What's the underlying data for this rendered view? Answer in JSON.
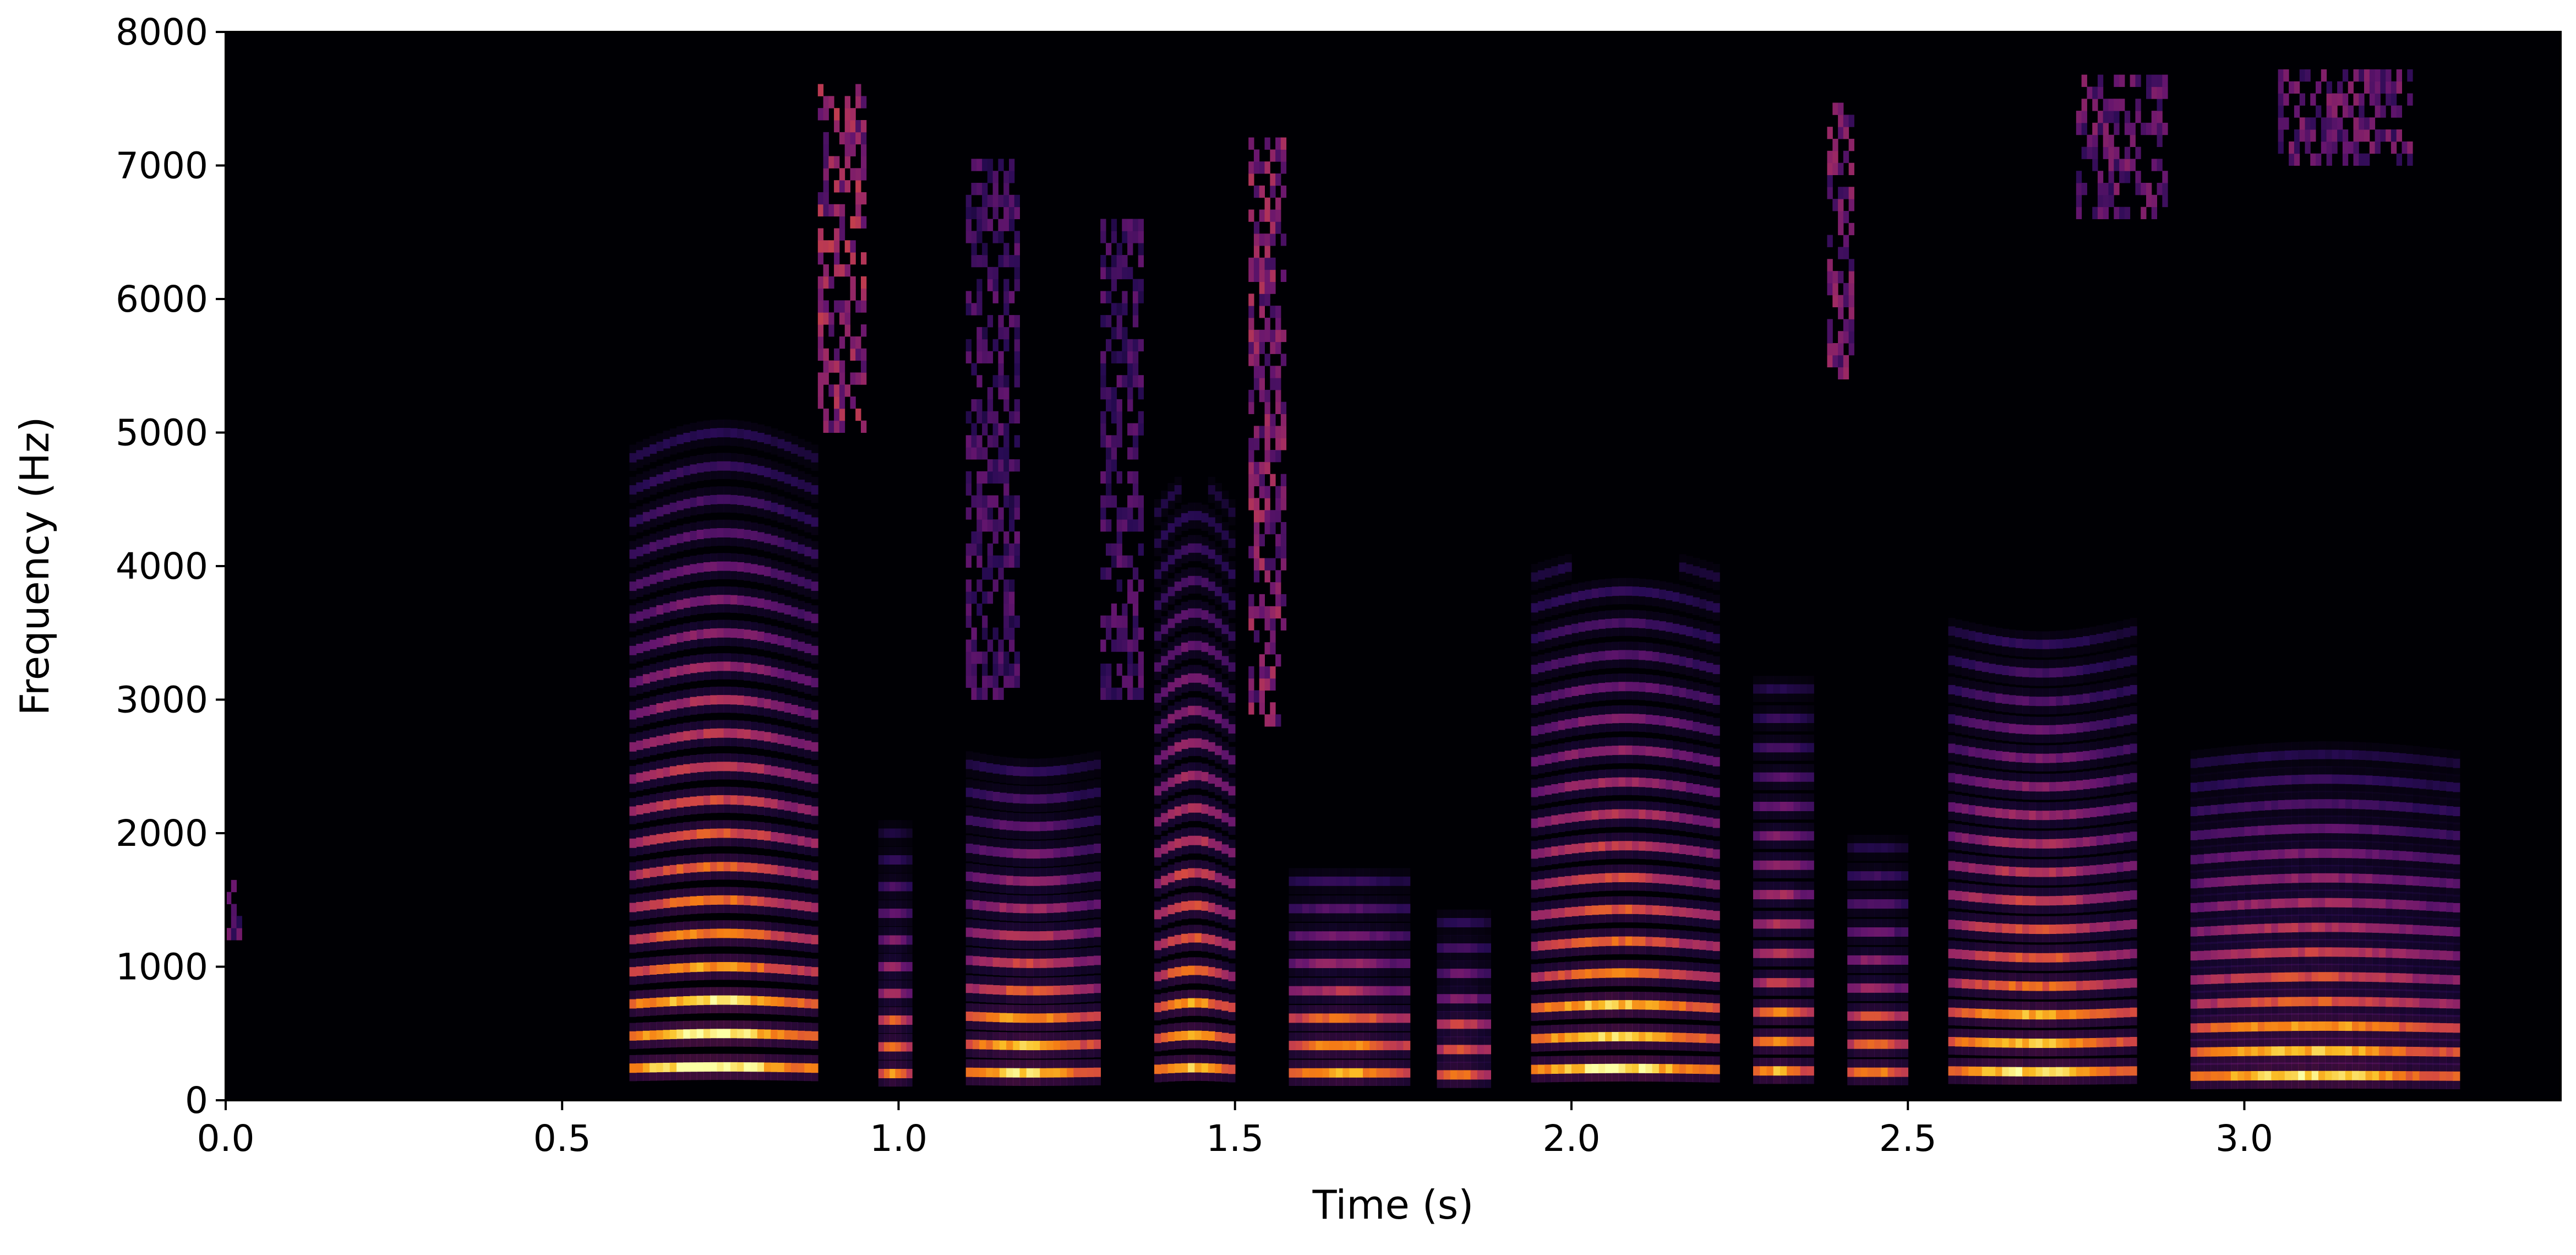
{
  "chart_data": {
    "type": "heatmap",
    "subtype": "spectrogram",
    "title": "",
    "xlabel": "Time (s)",
    "ylabel": "Frequency (Hz)",
    "xlim": [
      0.0,
      3.47
    ],
    "ylim": [
      0,
      8000
    ],
    "xticks": [
      "0.0",
      "0.5",
      "1.0",
      "1.5",
      "2.0",
      "2.5",
      "3.0"
    ],
    "xtick_values": [
      0.0,
      0.5,
      1.0,
      1.5,
      2.0,
      2.5,
      3.0
    ],
    "yticks": [
      "0",
      "1000",
      "2000",
      "3000",
      "4000",
      "5000",
      "6000",
      "7000",
      "8000"
    ],
    "ytick_values": [
      0,
      1000,
      2000,
      3000,
      4000,
      5000,
      6000,
      7000,
      8000
    ],
    "grid": false,
    "legend": "none",
    "colormap": "inferno",
    "colors": {
      "background": "#000004",
      "low": "#3b0f70",
      "mid": "#8c2981",
      "high": "#de4968",
      "peak": "#fe9f6d",
      "max": "#fcfdbf"
    },
    "voiced_segments": [
      {
        "start": 0.6,
        "end": 0.88,
        "f0": 240,
        "max_freq": 5000,
        "energy": 1.0,
        "harmonic_slope": 60
      },
      {
        "start": 0.97,
        "end": 1.02,
        "f0": 200,
        "max_freq": 2000,
        "energy": 0.75,
        "harmonic_slope": 0
      },
      {
        "start": 1.1,
        "end": 1.3,
        "f0": 210,
        "max_freq": 2600,
        "energy": 0.9,
        "harmonic_slope": -30
      },
      {
        "start": 1.38,
        "end": 1.5,
        "f0": 230,
        "max_freq": 4600,
        "energy": 0.85,
        "harmonic_slope": 80
      },
      {
        "start": 1.58,
        "end": 1.76,
        "f0": 205,
        "max_freq": 1800,
        "energy": 0.85,
        "harmonic_slope": 0
      },
      {
        "start": 1.8,
        "end": 1.88,
        "f0": 190,
        "max_freq": 1500,
        "energy": 0.7,
        "harmonic_slope": 0
      },
      {
        "start": 1.94,
        "end": 2.22,
        "f0": 230,
        "max_freq": 4000,
        "energy": 0.95,
        "harmonic_slope": 50
      },
      {
        "start": 2.27,
        "end": 2.36,
        "f0": 220,
        "max_freq": 3200,
        "energy": 0.8,
        "harmonic_slope": 0
      },
      {
        "start": 2.41,
        "end": 2.5,
        "f0": 210,
        "max_freq": 2000,
        "energy": 0.75,
        "harmonic_slope": 0
      },
      {
        "start": 2.56,
        "end": 2.84,
        "f0": 220,
        "max_freq": 3600,
        "energy": 0.9,
        "harmonic_slope": -40
      },
      {
        "start": 2.92,
        "end": 3.32,
        "f0": 180,
        "max_freq": 2600,
        "energy": 0.9,
        "harmonic_slope": 30
      }
    ],
    "noise_segments": [
      {
        "start": 0.88,
        "end": 0.95,
        "fmin": 5000,
        "fmax": 7600,
        "energy": 0.55
      },
      {
        "start": 1.52,
        "end": 1.57,
        "fmin": 2800,
        "fmax": 7200,
        "energy": 0.5
      },
      {
        "start": 2.38,
        "end": 2.42,
        "fmin": 5400,
        "fmax": 7400,
        "energy": 0.45
      },
      {
        "start": 2.75,
        "end": 2.88,
        "fmin": 6600,
        "fmax": 7600,
        "energy": 0.4
      },
      {
        "start": 3.05,
        "end": 3.25,
        "fmin": 7000,
        "fmax": 7700,
        "energy": 0.4
      },
      {
        "start": 1.1,
        "end": 1.18,
        "fmin": 3000,
        "fmax": 7000,
        "energy": 0.3
      },
      {
        "start": 1.3,
        "end": 1.36,
        "fmin": 3000,
        "fmax": 6600,
        "energy": 0.3
      },
      {
        "start": 0.0,
        "end": 0.02,
        "fmin": 1200,
        "fmax": 1600,
        "energy": 0.35
      }
    ]
  }
}
